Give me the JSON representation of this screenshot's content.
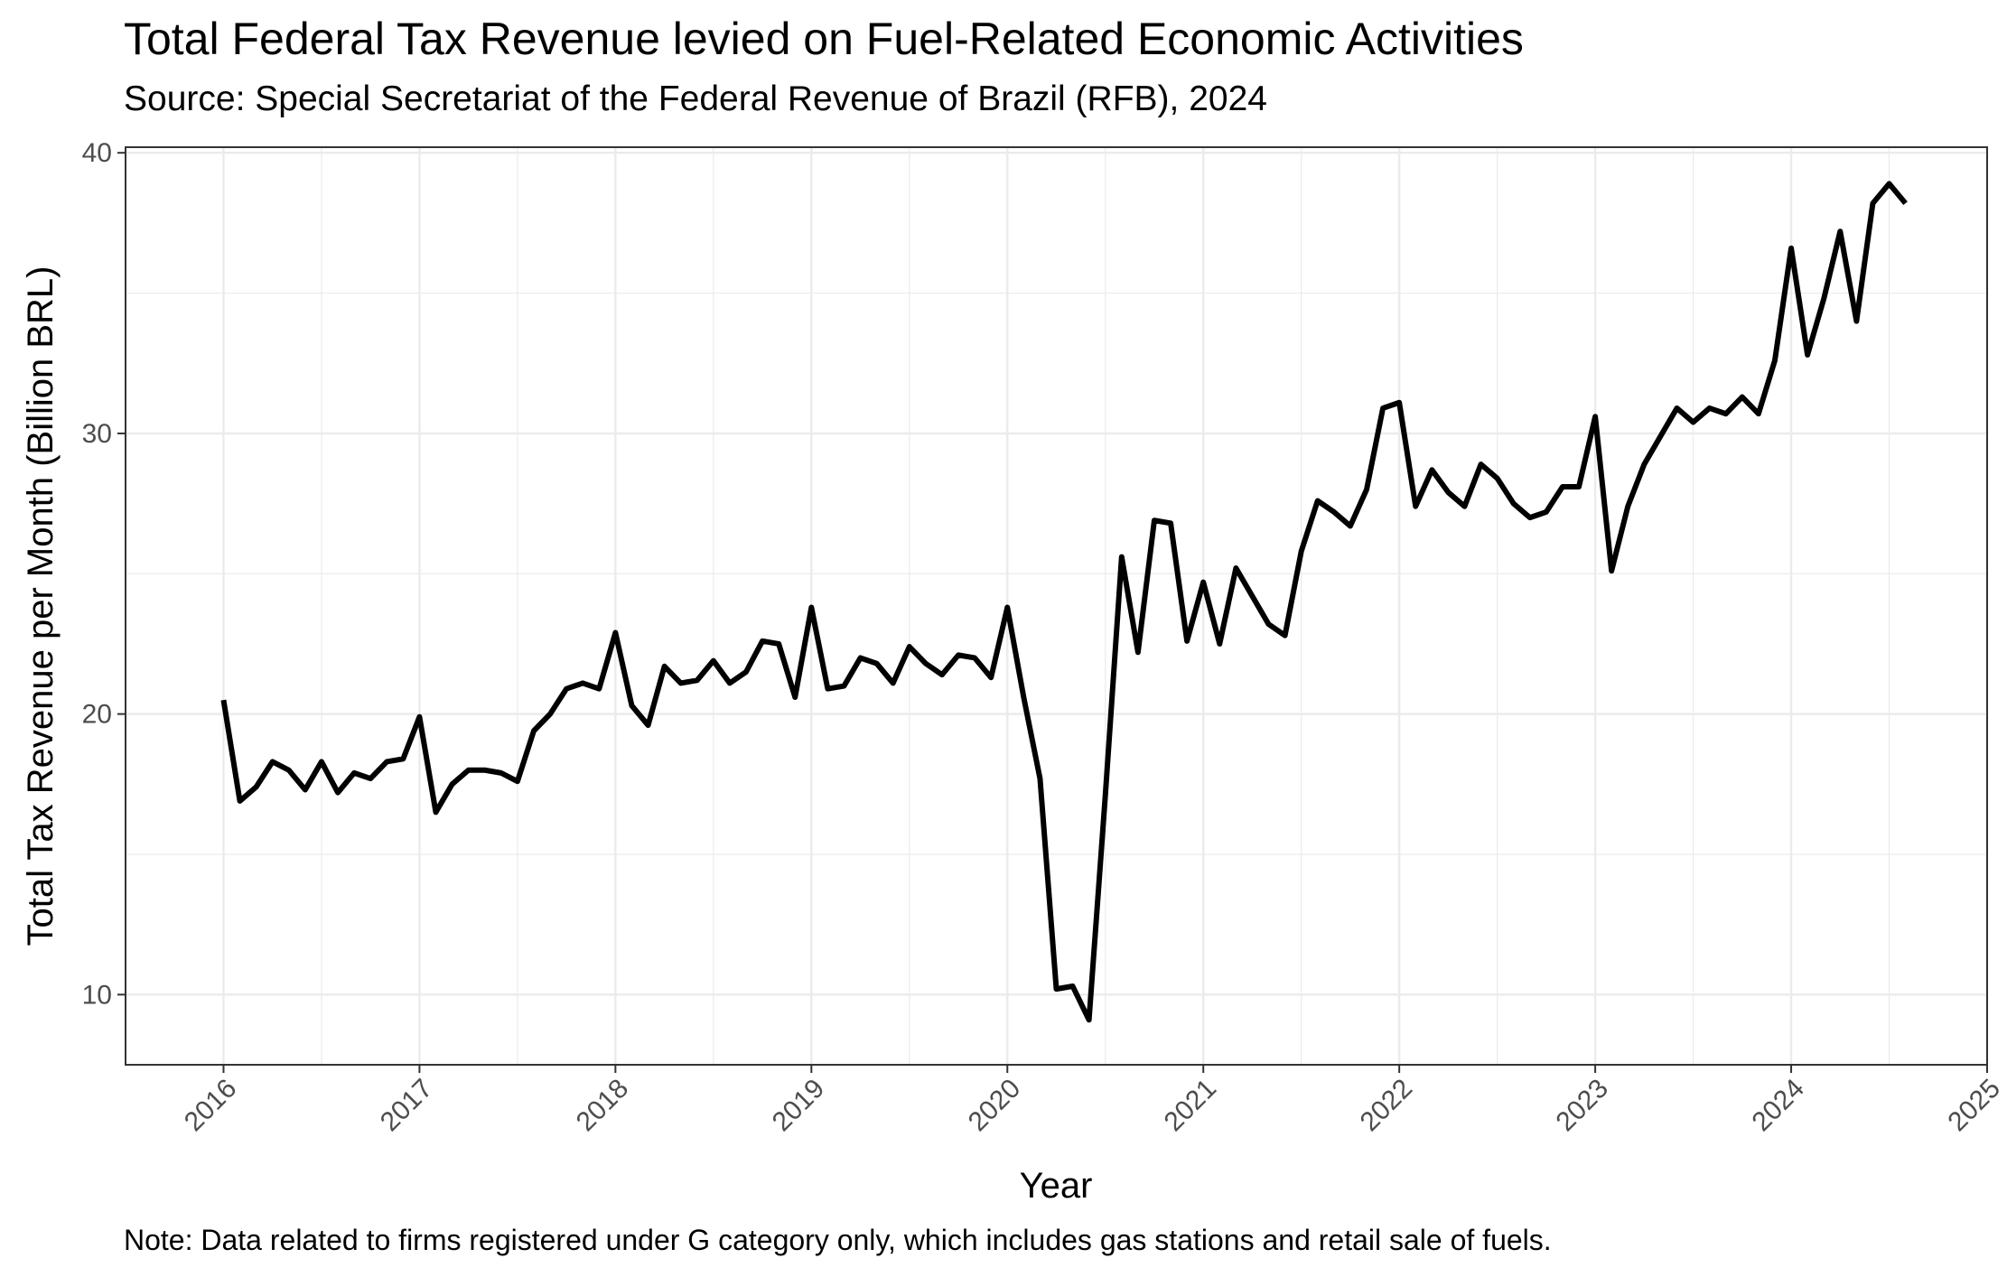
{
  "chart_data": {
    "type": "line",
    "title": "Total Federal Tax Revenue levied on Fuel-Related Economic Activities",
    "subtitle": "Source: Special Secretariat of the Federal Revenue of Brazil (RFB), 2024",
    "caption": "Note: Data related to firms registered under G category only, which includes gas stations and retail sale of fuels.",
    "xlabel": "Year",
    "ylabel": "Total Tax Revenue per Month (Billion BRL)",
    "x_ticks": [
      "2016",
      "2017",
      "2018",
      "2019",
      "2020",
      "2021",
      "2022",
      "2023",
      "2024",
      "2025"
    ],
    "y_ticks": [
      "10",
      "20",
      "30",
      "40"
    ],
    "x_range": [
      "2015-07",
      "2025-01"
    ],
    "ylim": [
      7.5,
      40.2
    ],
    "grid": true,
    "line_color": "#000000",
    "series": [
      {
        "x": [
          "2016-01",
          "2016-02",
          "2016-03",
          "2016-04",
          "2016-05",
          "2016-06",
          "2016-07",
          "2016-08",
          "2016-09",
          "2016-10",
          "2016-11",
          "2016-12",
          "2017-01",
          "2017-02",
          "2017-03",
          "2017-04",
          "2017-05",
          "2017-06",
          "2017-07",
          "2017-08",
          "2017-09",
          "2017-10",
          "2017-11",
          "2017-12",
          "2018-01",
          "2018-02",
          "2018-03",
          "2018-04",
          "2018-05",
          "2018-06",
          "2018-07",
          "2018-08",
          "2018-09",
          "2018-10",
          "2018-11",
          "2018-12",
          "2019-01",
          "2019-02",
          "2019-03",
          "2019-04",
          "2019-05",
          "2019-06",
          "2019-07",
          "2019-08",
          "2019-09",
          "2019-10",
          "2019-11",
          "2019-12",
          "2020-01",
          "2020-02",
          "2020-03",
          "2020-04",
          "2020-05",
          "2020-06",
          "2020-07",
          "2020-08",
          "2020-09",
          "2020-10",
          "2020-11",
          "2020-12",
          "2021-01",
          "2021-02",
          "2021-03",
          "2021-04",
          "2021-05",
          "2021-06",
          "2021-07",
          "2021-08",
          "2021-09",
          "2021-10",
          "2021-11",
          "2021-12",
          "2022-01",
          "2022-02",
          "2022-03",
          "2022-04",
          "2022-05",
          "2022-06",
          "2022-07",
          "2022-08",
          "2022-09",
          "2022-10",
          "2022-11",
          "2022-12",
          "2023-01",
          "2023-02",
          "2023-03",
          "2023-04",
          "2023-05",
          "2023-06",
          "2023-07",
          "2023-08",
          "2023-09",
          "2023-10",
          "2023-11",
          "2023-12",
          "2024-01",
          "2024-02",
          "2024-03",
          "2024-04",
          "2024-05",
          "2024-06",
          "2024-07",
          "2024-08"
        ],
        "values": [
          20.5,
          16.9,
          17.4,
          18.3,
          18.0,
          17.3,
          18.3,
          17.2,
          17.9,
          17.7,
          18.3,
          18.4,
          19.9,
          16.5,
          17.5,
          18.0,
          18.0,
          17.9,
          17.6,
          19.4,
          20.0,
          20.9,
          21.1,
          20.9,
          22.9,
          20.3,
          19.6,
          21.7,
          21.1,
          21.2,
          21.9,
          21.1,
          21.5,
          22.6,
          22.5,
          20.6,
          23.8,
          20.9,
          21.0,
          22.0,
          21.8,
          21.1,
          22.4,
          21.8,
          21.4,
          22.1,
          22.0,
          21.3,
          23.8,
          20.6,
          17.7,
          10.2,
          10.3,
          9.1,
          17.1,
          25.6,
          22.2,
          26.9,
          26.8,
          22.6,
          24.7,
          22.5,
          25.2,
          24.2,
          23.2,
          22.8,
          25.8,
          27.6,
          27.2,
          26.7,
          28.0,
          30.9,
          31.1,
          27.4,
          28.7,
          27.9,
          27.4,
          28.9,
          28.4,
          27.5,
          27.0,
          27.2,
          28.1,
          28.1,
          30.6,
          25.1,
          27.4,
          28.9,
          29.9,
          30.9,
          30.4,
          30.9,
          30.7,
          31.3,
          30.7,
          32.6,
          36.6,
          32.8,
          34.8,
          37.2,
          34.0,
          38.2,
          38.9,
          38.2
        ]
      }
    ]
  }
}
